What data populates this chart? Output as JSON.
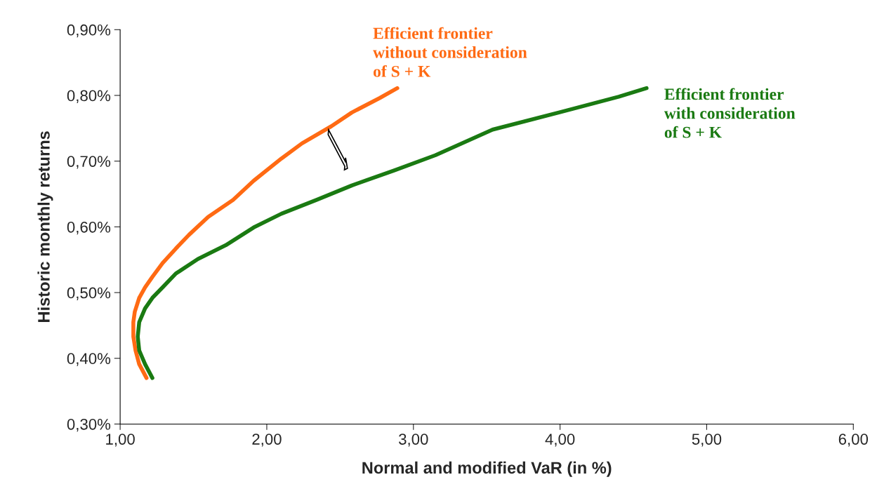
{
  "chart_data": {
    "type": "line",
    "xlabel": "Normal and modified VaR (in %)",
    "ylabel": "Historic monthly returns",
    "xlim": [
      1.0,
      6.0
    ],
    "xticks": [
      {
        "value": 1,
        "label": "1,00"
      },
      {
        "value": 2,
        "label": "2,00"
      },
      {
        "value": 3,
        "label": "3,00"
      },
      {
        "value": 4,
        "label": "4,00"
      },
      {
        "value": 5,
        "label": "5,00"
      },
      {
        "value": 6,
        "label": "6,00"
      }
    ],
    "ylim": [
      0.3,
      0.9
    ],
    "yticks": [
      {
        "value": 0.3,
        "label": "0,30%"
      },
      {
        "value": 0.4,
        "label": "0,40%"
      },
      {
        "value": 0.5,
        "label": "0,50%"
      },
      {
        "value": 0.6,
        "label": "0,60%"
      },
      {
        "value": 0.7,
        "label": "0,70%"
      },
      {
        "value": 0.8,
        "label": "0,80%"
      },
      {
        "value": 0.9,
        "label": "0,90%"
      }
    ],
    "grid": false,
    "legend": false,
    "marker": "none",
    "line_style": "solid",
    "series": [
      {
        "name": "Efficient frontier\nwithout consideration\nof S + K",
        "color": "#ff6a13",
        "x": [
          1.18,
          1.13,
          1.105,
          1.09,
          1.09,
          1.1,
          1.13,
          1.17,
          1.22,
          1.29,
          1.38,
          1.47,
          1.6,
          1.77,
          1.91,
          2.1,
          2.24,
          2.44,
          2.58,
          2.77,
          2.89
        ],
        "values": [
          0.37,
          0.391,
          0.412,
          0.433,
          0.455,
          0.471,
          0.492,
          0.508,
          0.524,
          0.545,
          0.567,
          0.588,
          0.615,
          0.641,
          0.67,
          0.704,
          0.727,
          0.753,
          0.774,
          0.796,
          0.811
        ]
      },
      {
        "name": "Efficient frontier\nwith consideration\nof S + K",
        "color": "#1a7a12",
        "x": [
          1.22,
          1.17,
          1.13,
          1.12,
          1.13,
          1.17,
          1.22,
          1.29,
          1.38,
          1.53,
          1.72,
          1.91,
          2.1,
          2.34,
          2.58,
          2.87,
          3.15,
          3.54,
          4.01,
          4.4,
          4.59
        ],
        "values": [
          0.37,
          0.391,
          0.412,
          0.433,
          0.455,
          0.476,
          0.492,
          0.508,
          0.529,
          0.551,
          0.572,
          0.599,
          0.62,
          0.641,
          0.663,
          0.686,
          0.709,
          0.748,
          0.775,
          0.798,
          0.811
        ]
      }
    ]
  }
}
